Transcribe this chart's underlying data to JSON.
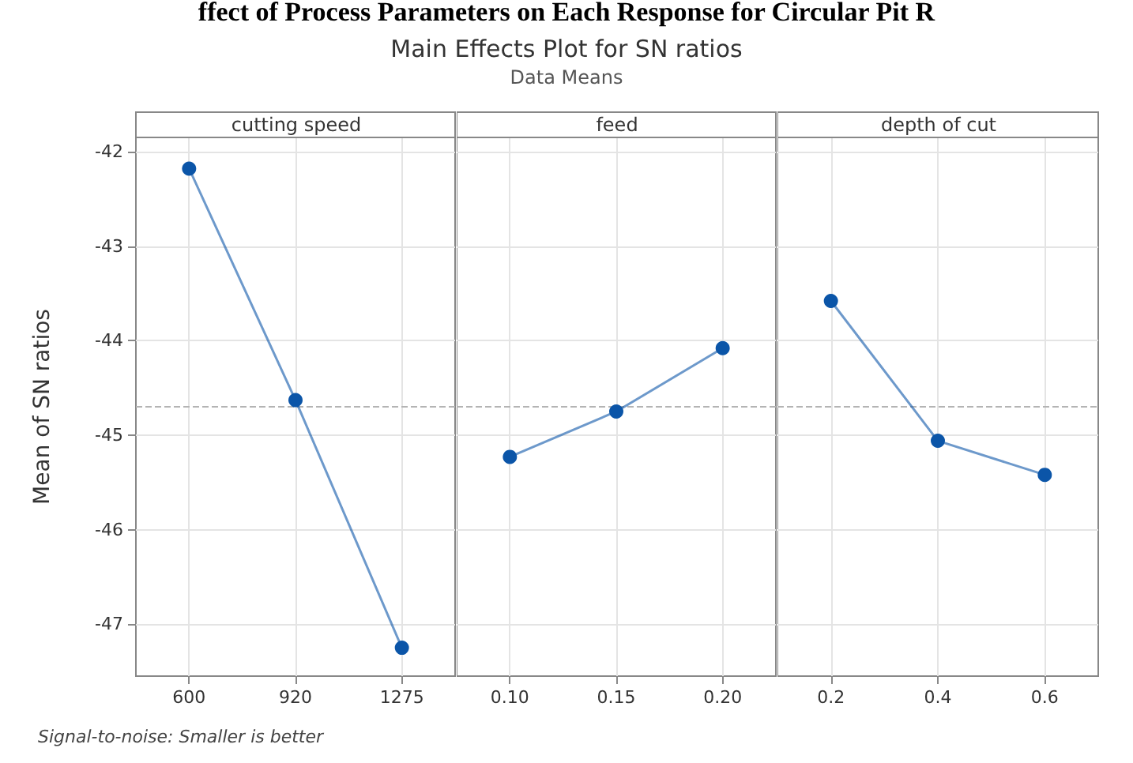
{
  "chart_data": [
    {
      "type": "line",
      "title": "cutting speed",
      "ylabel": "Mean of SN ratios",
      "annotations": [
        "ffect of Process Parameters on Each Response for Circular Pit R",
        "Main Effects Plot for SN ratios",
        "Data Means",
        "Signal-to-noise: Smaller is better"
      ],
      "categories": [
        "600",
        "920",
        "1275"
      ],
      "series": [
        {
          "color": "#0b55a8",
          "values": [
            -42.18,
            -44.63,
            -47.25
          ]
        }
      ],
      "ylim": [
        -47.55,
        -41.85
      ],
      "yticks": [
        -47,
        -46,
        -45,
        -44,
        -43,
        -42
      ],
      "grid": true,
      "marker": "circle",
      "line_style": "solid",
      "ref_lines": [
        {
          "axis": "y",
          "value": -44.69,
          "color": "#b4b4b4",
          "line_style": "dashed"
        }
      ]
    },
    {
      "type": "line",
      "title": "feed",
      "categories": [
        "0.10",
        "0.15",
        "0.20"
      ],
      "series": [
        {
          "color": "#0b55a8",
          "values": [
            -45.23,
            -44.75,
            -44.08
          ]
        }
      ],
      "ylim": [
        -47.55,
        -41.85
      ],
      "yticks": [
        -47,
        -46,
        -45,
        -44,
        -43,
        -42
      ],
      "tick_labels": "x",
      "grid": true,
      "marker": "circle",
      "line_style": "solid",
      "ref_lines": [
        {
          "axis": "y",
          "value": -44.69,
          "color": "#b4b4b4",
          "line_style": "dashed"
        }
      ]
    },
    {
      "type": "line",
      "title": "depth of cut",
      "categories": [
        "0.2",
        "0.4",
        "0.6"
      ],
      "series": [
        {
          "color": "#0b55a8",
          "values": [
            -43.58,
            -45.06,
            -45.42
          ]
        }
      ],
      "ylim": [
        -47.55,
        -41.85
      ],
      "yticks": [
        -47,
        -46,
        -45,
        -44,
        -43,
        -42
      ],
      "tick_labels": "x",
      "grid": true,
      "marker": "circle",
      "line_style": "solid",
      "ref_lines": [
        {
          "axis": "y",
          "value": -44.69,
          "color": "#b4b4b4",
          "line_style": "dashed"
        }
      ]
    }
  ]
}
